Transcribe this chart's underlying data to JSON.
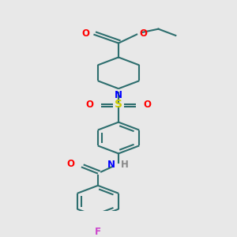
{
  "bg_color": "#e8e8e8",
  "bond_color": "#2d6e6e",
  "atom_colors": {
    "O": "#ff0000",
    "N": "#0000ff",
    "S": "#cccc00",
    "F": "#cc44cc",
    "H": "#888888",
    "C": "#2d6e6e"
  },
  "line_width": 1.5,
  "font_size": 8.5
}
